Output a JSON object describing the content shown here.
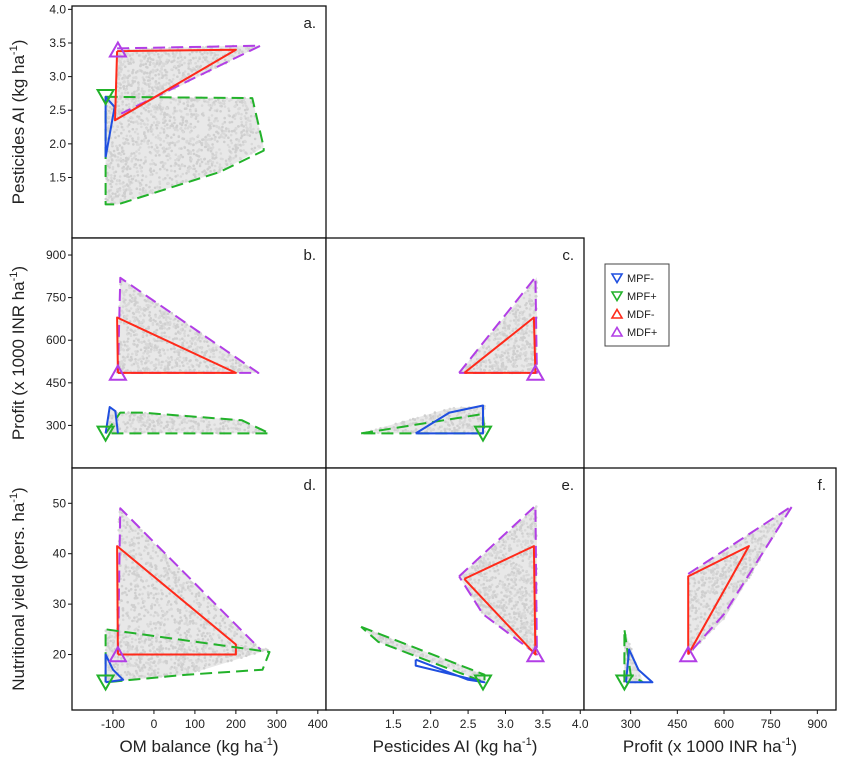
{
  "legend": {
    "placement": "right of panel c",
    "entries": [
      {
        "label": "MPF-",
        "color": "#1f4fe0",
        "marker": "triangle-down"
      },
      {
        "label": "MPF+",
        "color": "#22b22a",
        "marker": "triangle-down"
      },
      {
        "label": "MDF-",
        "color": "#ff2a1a",
        "marker": "triangle-up"
      },
      {
        "label": "MDF+",
        "color": "#b23ee6",
        "marker": "triangle-up"
      }
    ]
  },
  "axes_titles": {
    "x": [
      {
        "text": "OM balance (kg ha",
        "sup": "-1",
        "tail": ")"
      },
      {
        "text": "Pesticides AI (kg ha",
        "sup": "-1",
        "tail": ")"
      },
      {
        "text": "Profit (x 1000 INR ha",
        "sup": "-1",
        "tail": ")"
      }
    ],
    "y": [
      {
        "text": "Pesticides AI (kg ha",
        "sup": "-1",
        "tail": ")"
      },
      {
        "text": "Profit (x 1000 INR ha",
        "sup": "-1",
        "tail": ")"
      },
      {
        "text": "Nutritional yield (pers. ha",
        "sup": "-1",
        "tail": ")"
      }
    ]
  },
  "chart_data": {
    "type": "scatter",
    "description_style": "pairwise trade-off panels; grey cloud = solution space, outlines = group envelopes",
    "ranges": {
      "om": [
        -200,
        420
      ],
      "pest": [
        0.6,
        4.05
      ],
      "profit": [
        150,
        960
      ],
      "nutr": [
        9,
        57
      ]
    },
    "ticks": {
      "om": [
        -100,
        0,
        100,
        200,
        300,
        400
      ],
      "pest": [
        1.5,
        2.0,
        2.5,
        3.0,
        3.5,
        4.0
      ],
      "pest_y": [
        1.5,
        2.0,
        2.5,
        3.0,
        3.5,
        4.0
      ],
      "profit": [
        300,
        450,
        600,
        750,
        900
      ],
      "nutr": [
        20,
        30,
        40,
        50
      ]
    },
    "panels": [
      {
        "id": "a",
        "label": "a.",
        "x": "om",
        "y": "pest",
        "fills": [
          [
            [
              -118,
              1.1
            ],
            [
              -88,
              1.1
            ],
            [
              160,
              1.58
            ],
            [
              268,
              1.95
            ],
            [
              240,
              2.68
            ],
            [
              -90,
              2.7
            ],
            [
              -118,
              2.7
            ]
          ],
          [
            [
              -95,
              2.45
            ],
            [
              -88,
              3.4
            ],
            [
              200,
              3.46
            ],
            [
              260,
              3.46
            ],
            [
              -85,
              2.4
            ]
          ],
          [
            [
              -118,
              1.8
            ],
            [
              -96,
              2.5
            ],
            [
              -118,
              2.7
            ]
          ]
        ],
        "outlines": [
          {
            "group": "MPF+",
            "dashed": true,
            "points": [
              [
                -118,
                2.7
              ],
              [
                240,
                2.68
              ],
              [
                268,
                1.95
              ],
              [
                268,
                1.9
              ],
              [
                160,
                1.58
              ],
              [
                -88,
                1.1
              ],
              [
                -118,
                1.1
              ],
              [
                -118,
                2.7
              ]
            ]
          },
          {
            "group": "MPF-",
            "dashed": false,
            "points": [
              [
                -118,
                1.8
              ],
              [
                -96,
                2.55
              ],
              [
                -118,
                2.7
              ],
              [
                -118,
                1.8
              ]
            ]
          },
          {
            "group": "MDF+",
            "dashed": true,
            "points": [
              [
                -90,
                3.42
              ],
              [
                260,
                3.46
              ],
              [
                -80,
                2.45
              ]
            ]
          },
          {
            "group": "MDF-",
            "dashed": false,
            "points": [
              [
                -90,
                3.38
              ],
              [
                -95,
                2.35
              ],
              [
                200,
                3.4
              ],
              [
                -90,
                3.38
              ]
            ]
          }
        ],
        "markers": [
          {
            "group": "MPF+",
            "x": -118,
            "y": 2.7
          },
          {
            "group": "MDF+",
            "x": -88,
            "y": 3.4
          }
        ]
      },
      {
        "id": "b",
        "label": "b.",
        "x": "om",
        "y": "profit",
        "fills": [
          [
            [
              -90,
              485
            ],
            [
              -82,
              820
            ],
            [
              255,
              485
            ]
          ],
          [
            [
              -118,
              272
            ],
            [
              -108,
              365
            ],
            [
              -90,
              345
            ],
            [
              -30,
              345
            ],
            [
              215,
              318
            ],
            [
              282,
              272
            ]
          ]
        ],
        "outlines": [
          {
            "group": "MDF+",
            "dashed": true,
            "points": [
              [
                -88,
                485
              ],
              [
                -82,
                820
              ],
              [
                255,
                485
              ],
              [
                -88,
                485
              ]
            ]
          },
          {
            "group": "MDF-",
            "dashed": false,
            "points": [
              [
                -88,
                485
              ],
              [
                -90,
                680
              ],
              [
                200,
                485
              ],
              [
                -88,
                485
              ]
            ]
          },
          {
            "group": "MPF+",
            "dashed": true,
            "points": [
              [
                -118,
                272
              ],
              [
                -82,
                345
              ],
              [
                -30,
                345
              ],
              [
                215,
                318
              ],
              [
                282,
                272
              ],
              [
                -118,
                272
              ]
            ]
          },
          {
            "group": "MPF-",
            "dashed": false,
            "points": [
              [
                -118,
                272
              ],
              [
                -108,
                365
              ],
              [
                -94,
                350
              ],
              [
                -88,
                272
              ]
            ]
          }
        ],
        "markers": [
          {
            "group": "MPF+",
            "x": -118,
            "y": 272
          },
          {
            "group": "MDF+",
            "x": -88,
            "y": 485
          }
        ]
      },
      {
        "id": "c",
        "label": "c.",
        "x": "pest",
        "y": "profit",
        "fills": [
          [
            [
              2.38,
              485
            ],
            [
              3.42,
              822
            ],
            [
              3.42,
              485
            ]
          ],
          [
            [
              1.07,
              272
            ],
            [
              2.25,
              360
            ],
            [
              2.72,
              370
            ],
            [
              2.72,
              272
            ]
          ]
        ],
        "outlines": [
          {
            "group": "MDF+",
            "dashed": true,
            "points": [
              [
                2.38,
                485
              ],
              [
                3.4,
                822
              ],
              [
                3.42,
                485
              ],
              [
                2.38,
                485
              ]
            ]
          },
          {
            "group": "MDF-",
            "dashed": false,
            "points": [
              [
                2.45,
                485
              ],
              [
                3.38,
                680
              ],
              [
                3.4,
                485
              ],
              [
                2.45,
                485
              ]
            ]
          },
          {
            "group": "MPF+",
            "dashed": true,
            "points": [
              [
                1.07,
                272
              ],
              [
                2.7,
                340
              ],
              [
                2.72,
                272
              ],
              [
                1.07,
                272
              ]
            ]
          },
          {
            "group": "MPF-",
            "dashed": false,
            "points": [
              [
                1.8,
                272
              ],
              [
                2.25,
                345
              ],
              [
                2.7,
                370
              ],
              [
                2.7,
                272
              ],
              [
                1.8,
                272
              ]
            ]
          }
        ],
        "markers": [
          {
            "group": "MPF+",
            "x": 2.7,
            "y": 272
          },
          {
            "group": "MDF+",
            "x": 3.4,
            "y": 485
          }
        ]
      },
      {
        "id": "d",
        "label": "d.",
        "x": "om",
        "y": "nutr",
        "fills": [
          [
            [
              -92,
              20
            ],
            [
              -85,
              49
            ],
            [
              260,
              21
            ],
            [
              -80,
              20
            ]
          ],
          [
            [
              -118,
              14.5
            ],
            [
              -118,
              25
            ],
            [
              282,
              21
            ],
            [
              80,
              16
            ],
            [
              -118,
              14.5
            ]
          ]
        ],
        "outlines": [
          {
            "group": "MDF+",
            "dashed": true,
            "points": [
              [
                -88,
                20
              ],
              [
                -82,
                49
              ],
              [
                260,
                21
              ]
            ]
          },
          {
            "group": "MDF-",
            "dashed": false,
            "points": [
              [
                -88,
                20
              ],
              [
                -90,
                41.5
              ],
              [
                200,
                22
              ],
              [
                200,
                20
              ],
              [
                -88,
                20
              ]
            ]
          },
          {
            "group": "MPF+",
            "dashed": true,
            "points": [
              [
                -118,
                14.5
              ],
              [
                -118,
                25
              ],
              [
                282,
                20.5
              ],
              [
                265,
                17
              ],
              [
                80,
                16
              ],
              [
                -118,
                14.5
              ]
            ]
          },
          {
            "group": "MPF-",
            "dashed": false,
            "points": [
              [
                -118,
                14.5
              ],
              [
                -118,
                20
              ],
              [
                -100,
                17
              ],
              [
                -75,
                15
              ],
              [
                -118,
                14.5
              ]
            ]
          }
        ],
        "markers": [
          {
            "group": "MPF+",
            "x": -118,
            "y": 14.5
          },
          {
            "group": "MDF+",
            "x": -88,
            "y": 20
          }
        ]
      },
      {
        "id": "e",
        "label": "e.",
        "x": "pest",
        "y": "nutr",
        "fills": [
          [
            [
              2.38,
              35.5
            ],
            [
              3.42,
              49.5
            ],
            [
              3.42,
              20
            ],
            [
              2.7,
              28
            ]
          ],
          [
            [
              1.07,
              25.5
            ],
            [
              2.72,
              16
            ],
            [
              2.72,
              14.5
            ],
            [
              1.3,
              22.5
            ]
          ]
        ],
        "outlines": [
          {
            "group": "MDF+",
            "dashed": true,
            "points": [
              [
                2.38,
                35.5
              ],
              [
                3.4,
                49.5
              ],
              [
                3.42,
                20
              ],
              [
                2.7,
                28
              ],
              [
                2.38,
                35.5
              ]
            ]
          },
          {
            "group": "MDF-",
            "dashed": false,
            "points": [
              [
                2.45,
                35
              ],
              [
                3.38,
                41.5
              ],
              [
                3.4,
                20
              ],
              [
                2.45,
                35
              ]
            ]
          },
          {
            "group": "MPF+",
            "dashed": true,
            "points": [
              [
                1.07,
                25.5
              ],
              [
                2.72,
                16
              ],
              [
                2.72,
                14.5
              ],
              [
                1.3,
                22.5
              ],
              [
                1.07,
                25.5
              ]
            ]
          },
          {
            "group": "MPF-",
            "dashed": false,
            "points": [
              [
                1.8,
                19
              ],
              [
                2.5,
                15
              ],
              [
                2.72,
                14.5
              ],
              [
                1.8,
                17.8
              ],
              [
                1.8,
                19
              ]
            ]
          }
        ],
        "markers": [
          {
            "group": "MPF+",
            "x": 2.7,
            "y": 14.5
          },
          {
            "group": "MDF+",
            "x": 3.4,
            "y": 20
          }
        ]
      },
      {
        "id": "f",
        "label": "f.",
        "x": "profit",
        "y": "nutr",
        "fills": [
          [
            [
              485,
              20
            ],
            [
              485,
              36
            ],
            [
              820,
              49.5
            ],
            [
              600,
              27
            ]
          ],
          [
            [
              278,
              14.5
            ],
            [
              280,
              25
            ],
            [
              340,
              14.5
            ]
          ]
        ],
        "outlines": [
          {
            "group": "MDF+",
            "dashed": true,
            "points": [
              [
                485,
                36
              ],
              [
                820,
                49.5
              ],
              [
                600,
                28
              ],
              [
                485,
                20
              ]
            ]
          },
          {
            "group": "MDF-",
            "dashed": false,
            "points": [
              [
                485,
                20
              ],
              [
                485,
                35.5
              ],
              [
                680,
                41.5
              ],
              [
                485,
                20
              ]
            ]
          },
          {
            "group": "MPF+",
            "dashed": true,
            "points": [
              [
                280,
                14.5
              ],
              [
                280,
                25
              ],
              [
                300,
                16
              ],
              [
                340,
                14.5
              ]
            ]
          },
          {
            "group": "MPF-",
            "dashed": false,
            "points": [
              [
                285,
                14.5
              ],
              [
                295,
                21
              ],
              [
                325,
                17
              ],
              [
                370,
                14.5
              ],
              [
                285,
                14.5
              ]
            ]
          }
        ],
        "markers": [
          {
            "group": "MPF+",
            "x": 280,
            "y": 14.5
          },
          {
            "group": "MDF+",
            "x": 485,
            "y": 20
          }
        ]
      }
    ]
  }
}
